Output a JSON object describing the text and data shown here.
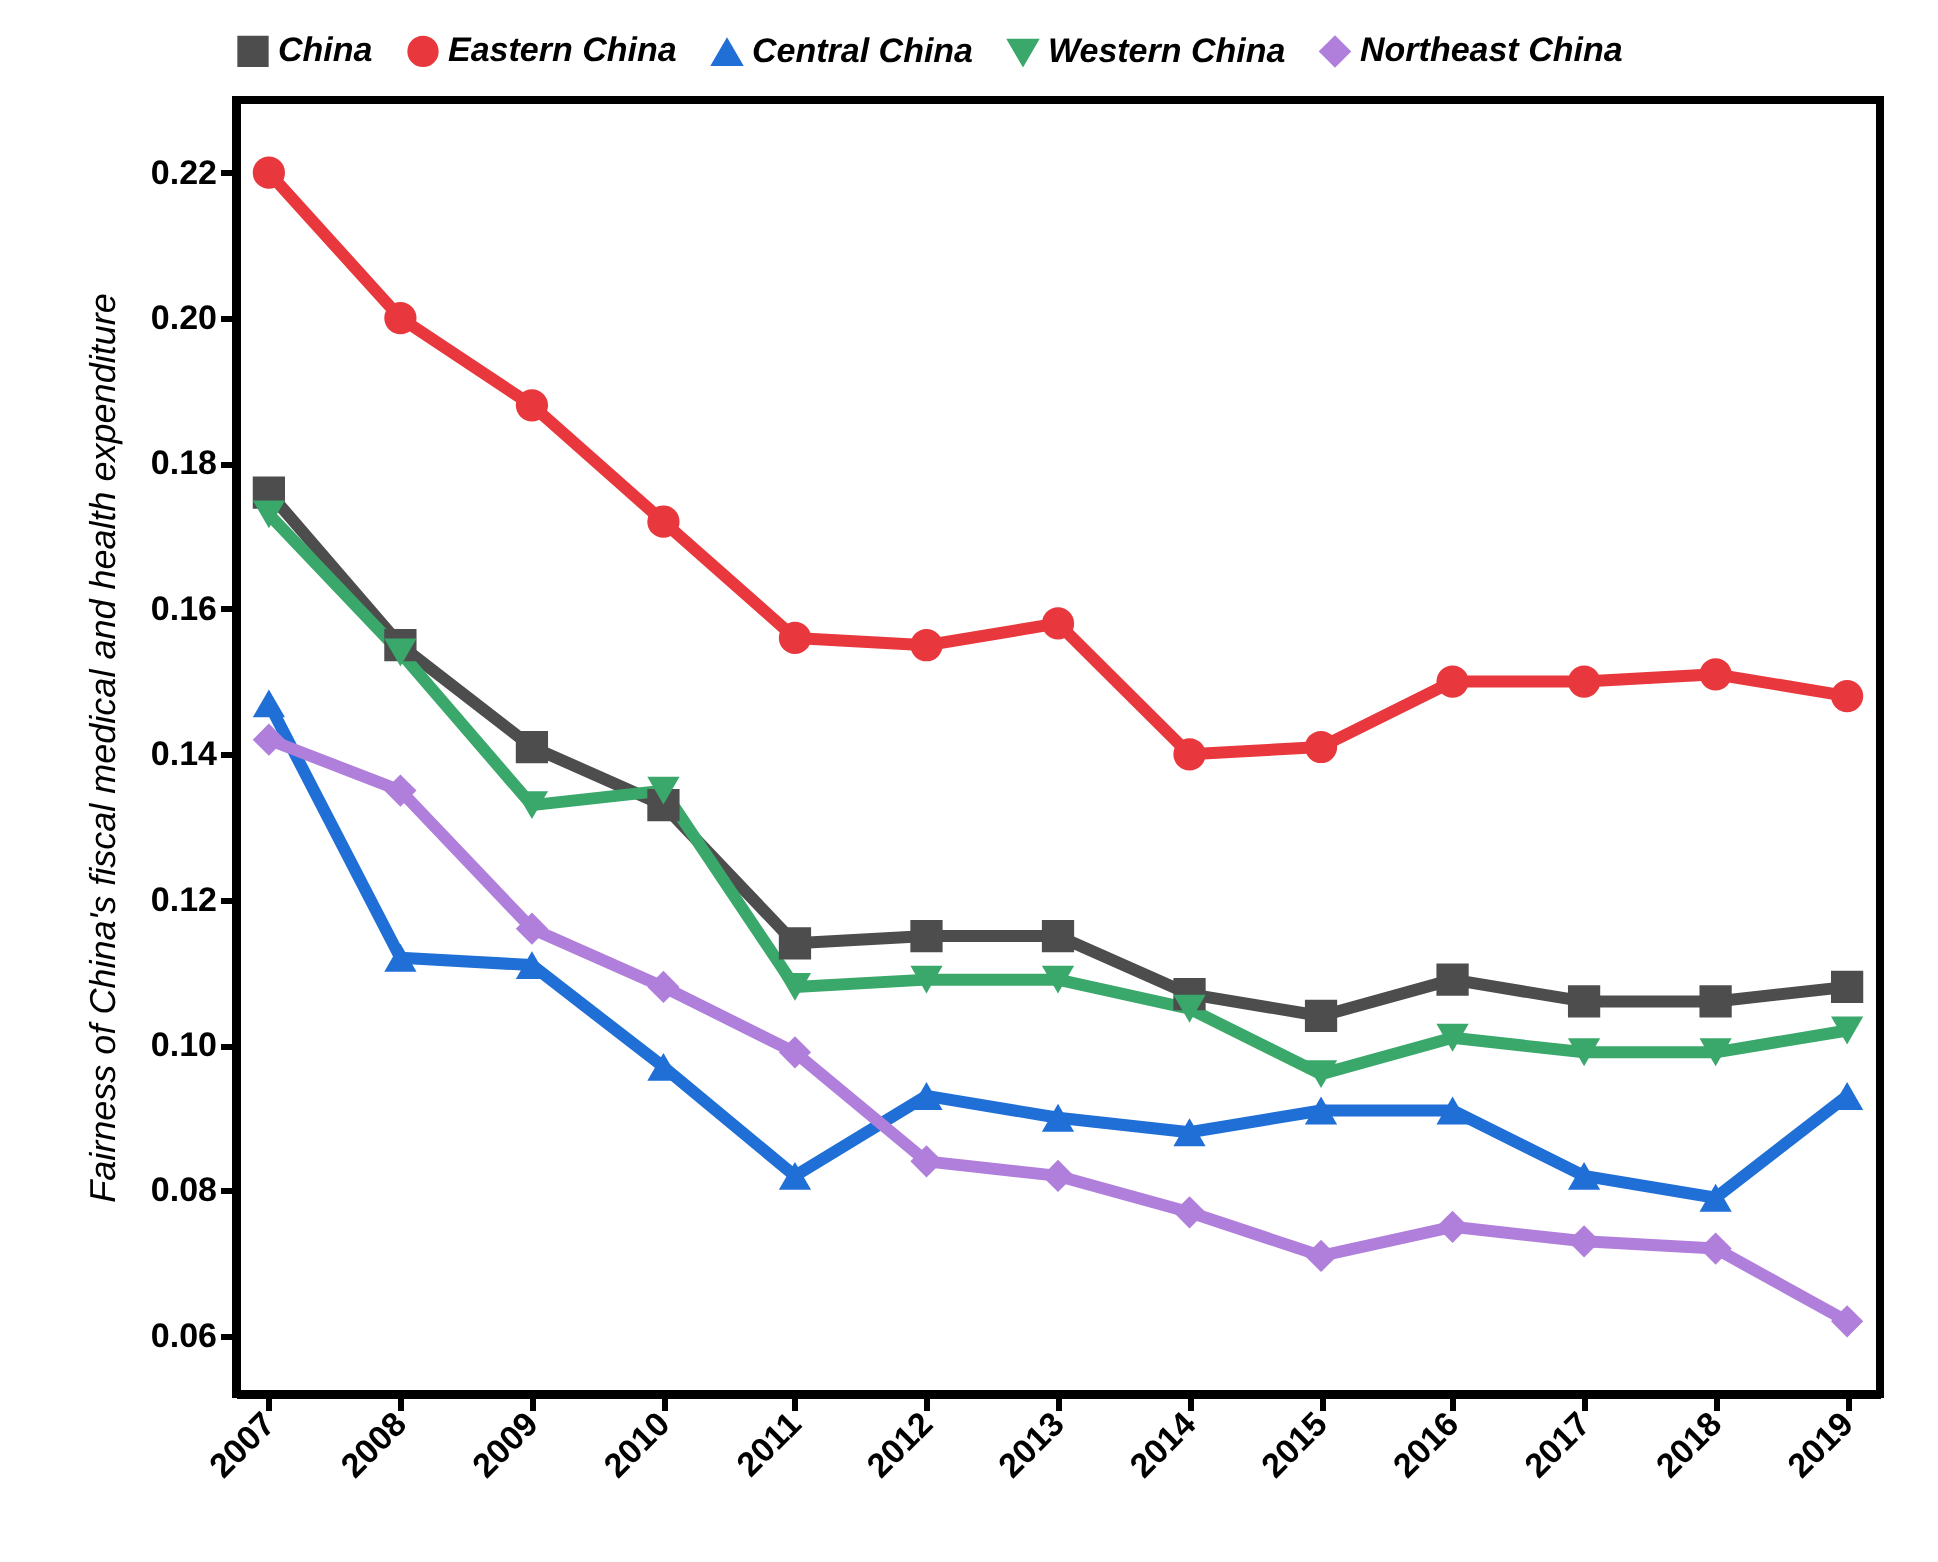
{
  "chart_data": {
    "type": "line",
    "ylabel": "Fairness of China's fiscal medical and health expenditure",
    "categories": [
      "2007",
      "2008",
      "2009",
      "2010",
      "2011",
      "2012",
      "2013",
      "2014",
      "2015",
      "2016",
      "2017",
      "2018",
      "2019"
    ],
    "series": [
      {
        "name": "China",
        "color": "#4d4d4d",
        "marker": "square",
        "values": [
          0.176,
          0.155,
          0.141,
          0.133,
          0.114,
          0.115,
          0.115,
          0.107,
          0.104,
          0.109,
          0.106,
          0.106,
          0.108
        ]
      },
      {
        "name": "Eastern China",
        "color": "#e8383d",
        "marker": "circle",
        "values": [
          0.22,
          0.2,
          0.188,
          0.172,
          0.156,
          0.155,
          0.158,
          0.14,
          0.141,
          0.15,
          0.15,
          0.151,
          0.148
        ]
      },
      {
        "name": "Central China",
        "color": "#1f6fd6",
        "marker": "triangle",
        "values": [
          0.147,
          0.112,
          0.111,
          0.097,
          0.082,
          0.093,
          0.09,
          0.088,
          0.091,
          0.091,
          0.082,
          0.079,
          0.093
        ]
      },
      {
        "name": "Western China",
        "color": "#3aa86b",
        "marker": "triangle-down",
        "values": [
          0.173,
          0.154,
          0.133,
          0.135,
          0.108,
          0.109,
          0.109,
          0.105,
          0.096,
          0.101,
          0.099,
          0.099,
          0.102
        ]
      },
      {
        "name": "Northeast China",
        "color": "#b07fdb",
        "marker": "diamond",
        "values": [
          0.142,
          0.135,
          0.116,
          0.108,
          0.099,
          0.084,
          0.082,
          0.077,
          0.071,
          0.075,
          0.073,
          0.072,
          0.062
        ]
      }
    ],
    "ylim": [
      0.052,
      0.23
    ],
    "yticks": [
      0.06,
      0.08,
      {
        "value": 0.1,
        "label": "0.10"
      },
      0.12,
      0.14,
      0.16,
      0.18,
      {
        "value": 0.2,
        "label": "0.20"
      },
      0.22
    ],
    "grid": false,
    "legend": "top",
    "line_style": "solid"
  }
}
